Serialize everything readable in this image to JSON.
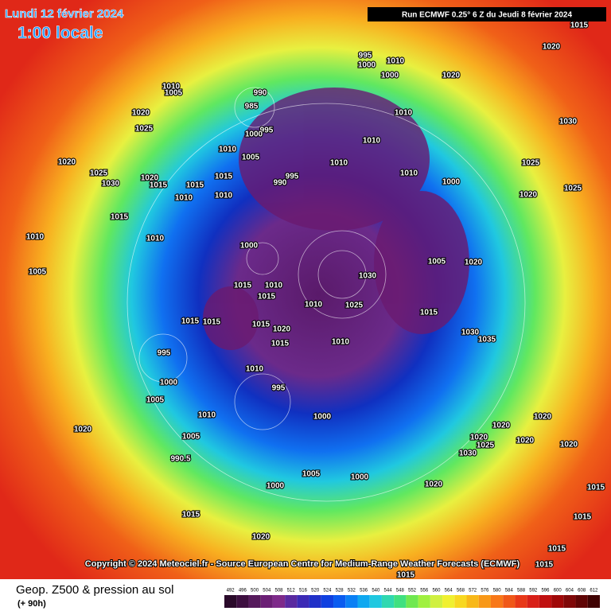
{
  "header": {
    "date": "Lundi 12 février 2024",
    "time": "1:00 locale",
    "run": "Run ECMWF 0.25° 6 Z du Jeudi 8 février 2024"
  },
  "map": {
    "isobar_labels": [
      "1015",
      "1020",
      "995",
      "1000",
      "1010",
      "1000",
      "1020",
      "1010",
      "1005",
      "990",
      "985",
      "995",
      "1000",
      "1020",
      "1025",
      "1010",
      "1030",
      "1010",
      "1010",
      "1005",
      "1020",
      "995",
      "990",
      "1010",
      "1025",
      "1025",
      "1030",
      "1020",
      "1015",
      "1010",
      "1000",
      "1015",
      "1015",
      "1010",
      "1010",
      "1020",
      "1025",
      "1015",
      "1010",
      "1010",
      "1000",
      "1005",
      "1020",
      "1030",
      "1015",
      "1010",
      "1015",
      "1010",
      "1025",
      "1015",
      "1005",
      "1015",
      "1015",
      "1015",
      "1020",
      "1015",
      "1010",
      "1030",
      "1035",
      "995",
      "1000",
      "1005",
      "1010",
      "995",
      "1010",
      "1000",
      "1020",
      "1020",
      "1020",
      "1005",
      "990.5",
      "1020",
      "1025",
      "1020",
      "1020",
      "1005",
      "1000",
      "1020",
      "1000",
      "1015",
      "1020",
      "1015",
      "1015",
      "1015",
      "1015",
      "1015",
      "1030"
    ],
    "copyright": "Copyright © 2024 Meteociel.fr - Source European Centre for Medium-Range Weather Forecasts (ECMWF)"
  },
  "legend": {
    "title": "Geop. Z500 & pression au sol",
    "lead": "(+ 90h)",
    "levels": [
      492,
      496,
      500,
      504,
      508,
      512,
      516,
      520,
      524,
      528,
      532,
      536,
      540,
      544,
      548,
      552,
      556,
      560,
      564,
      568,
      572,
      576,
      580,
      584,
      588,
      592,
      596,
      600,
      604,
      608,
      612
    ],
    "colors": [
      "#2a0a2a",
      "#3d0f40",
      "#561a5c",
      "#6b1f75",
      "#7e2a8a",
      "#5a2aa0",
      "#3c2ab5",
      "#2030c8",
      "#1040e0",
      "#0a5cf0",
      "#0a80f5",
      "#10a8f0",
      "#20c8e0",
      "#30d8b0",
      "#40e080",
      "#70e850",
      "#a0f040",
      "#d0f040",
      "#f0f030",
      "#f8d820",
      "#f8b818",
      "#f89818",
      "#f87818",
      "#f05818",
      "#e83818",
      "#d82018",
      "#c01010",
      "#a00808",
      "#800808",
      "#600505",
      "#400303"
    ]
  }
}
